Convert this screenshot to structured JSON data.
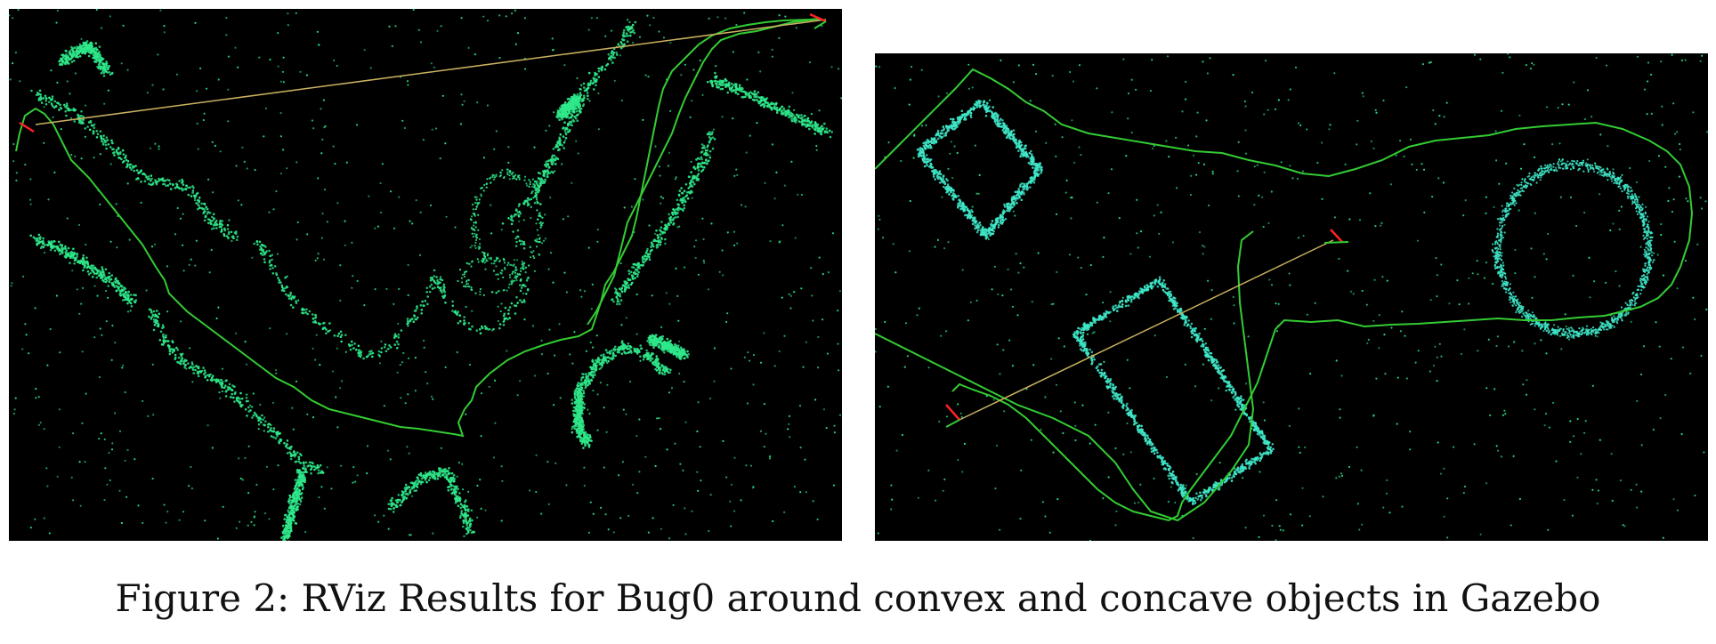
{
  "figure": {
    "caption": "Figure 2: RViz Results for Bug0 around convex and concave objects in Gazebo"
  },
  "colors": {
    "background": "#000000",
    "point_cloud": "#2ee88a",
    "point_cloud_cyan": "#3fe7c8",
    "path": "#33cc33",
    "goal_line": "#c8b060",
    "robot_marker": "#ff2222"
  },
  "panels": [
    {
      "name": "concave-scene",
      "content": "rviz-point-cloud-with-bug0-path"
    },
    {
      "name": "convex-scene",
      "content": "rviz-point-cloud-with-bug0-path"
    }
  ]
}
